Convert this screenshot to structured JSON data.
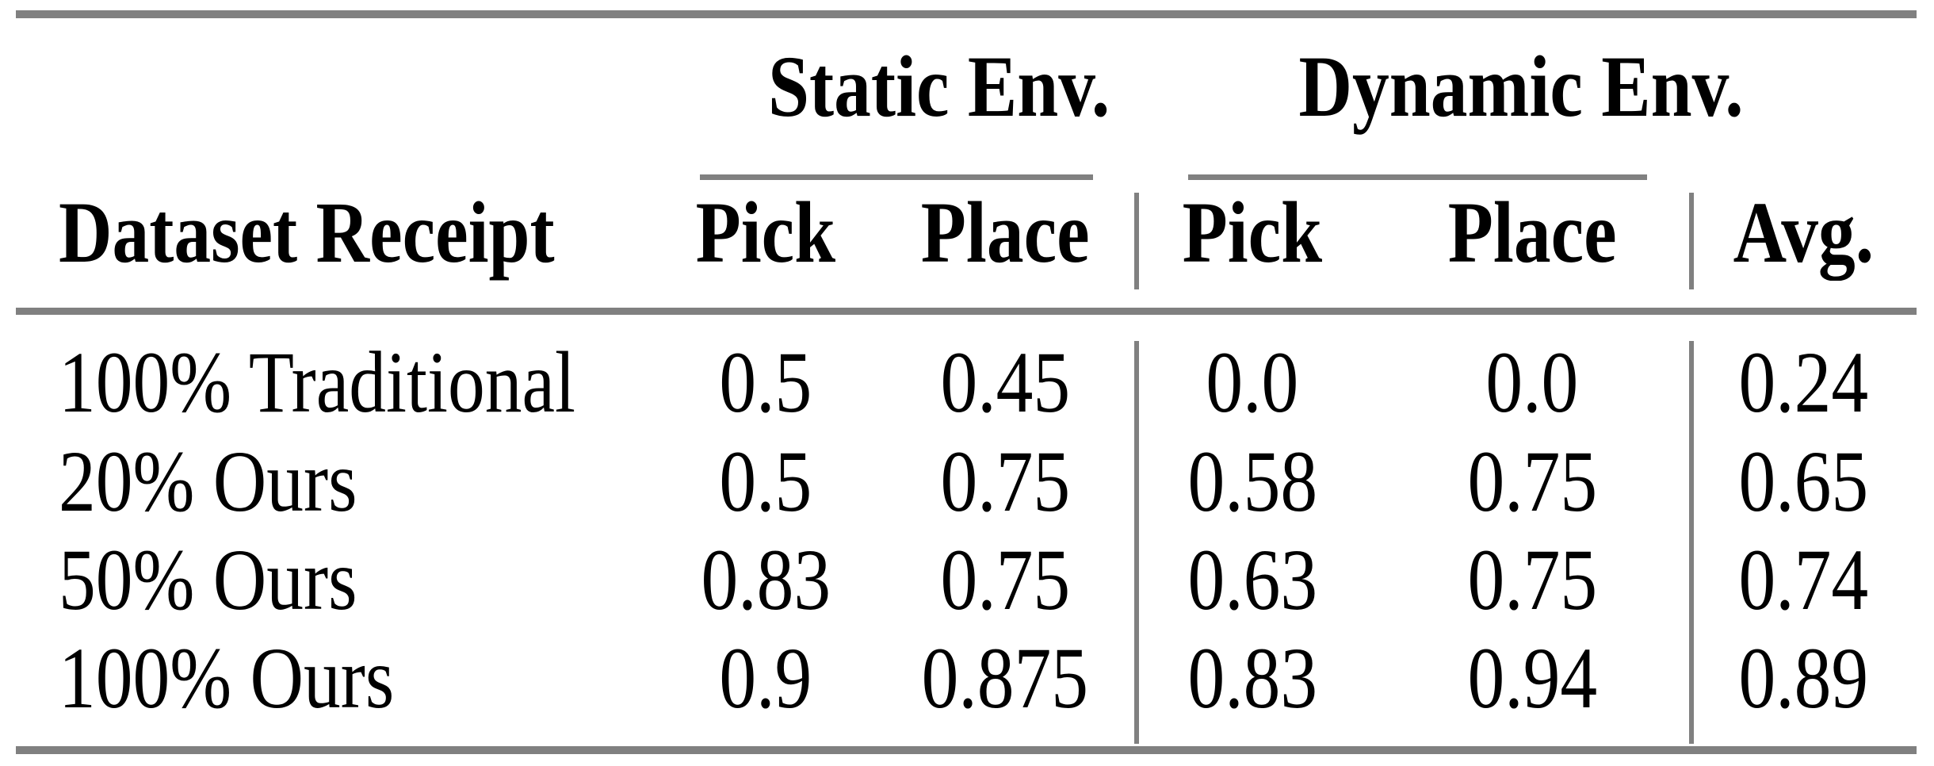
{
  "table": {
    "colors": {
      "rule": "#808080",
      "text": "#000000",
      "background": "#ffffff"
    },
    "group_headers": {
      "static": "Static Env.",
      "dynamic": "Dynamic Env."
    },
    "columns": {
      "dataset": "Dataset Receipt",
      "static_pick": "Pick",
      "static_place": "Place",
      "dynamic_pick": "Pick",
      "dynamic_place": "Place",
      "avg": "Avg."
    },
    "rows": [
      {
        "label": "100% Traditional",
        "static_pick": "0.5",
        "static_place": "0.45",
        "dynamic_pick": "0.0",
        "dynamic_place": "0.0",
        "avg": "0.24"
      },
      {
        "label": "20% Ours",
        "static_pick": "0.5",
        "static_place": "0.75",
        "dynamic_pick": "0.58",
        "dynamic_place": "0.75",
        "avg": "0.65"
      },
      {
        "label": "50% Ours",
        "static_pick": "0.83",
        "static_place": "0.75",
        "dynamic_pick": "0.63",
        "dynamic_place": "0.75",
        "avg": "0.74"
      },
      {
        "label": "100% Ours",
        "static_pick": "0.9",
        "static_place": "0.875",
        "dynamic_pick": "0.83",
        "dynamic_place": "0.94",
        "avg": "0.89"
      }
    ]
  },
  "chart_data": {
    "type": "table",
    "title": "",
    "column_groups": [
      "Static Env.",
      "Dynamic Env."
    ],
    "columns": [
      "Dataset Receipt",
      "Static Env. Pick",
      "Static Env. Place",
      "Dynamic Env. Pick",
      "Dynamic Env. Place",
      "Avg."
    ],
    "rows": [
      [
        "100% Traditional",
        0.5,
        0.45,
        0.0,
        0.0,
        0.24
      ],
      [
        "20% Ours",
        0.5,
        0.75,
        0.58,
        0.75,
        0.65
      ],
      [
        "50% Ours",
        0.83,
        0.75,
        0.63,
        0.75,
        0.74
      ],
      [
        "100% Ours",
        0.9,
        0.875,
        0.83,
        0.94,
        0.89
      ]
    ]
  }
}
